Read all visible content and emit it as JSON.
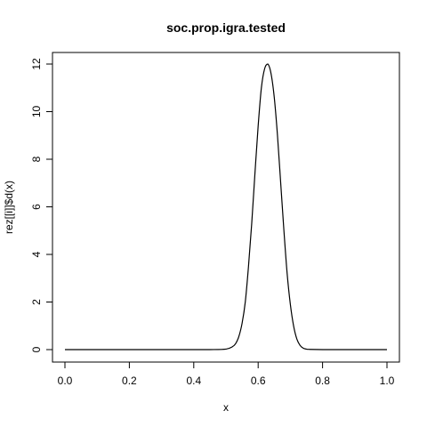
{
  "chart_data": {
    "type": "line",
    "title": "soc.prop.igra.tested",
    "xlabel": "x",
    "ylabel": "rez[[i]]$d(x)",
    "xlim": [
      0,
      1
    ],
    "ylim": [
      0,
      12
    ],
    "x_ticks": [
      0,
      0.2,
      0.4,
      0.6,
      0.8,
      1
    ],
    "x_tick_labels": [
      "0.0",
      "0.2",
      "0.4",
      "0.6",
      "0.8",
      "1.0"
    ],
    "y_ticks": [
      0,
      2,
      4,
      6,
      8,
      10,
      12
    ],
    "y_tick_labels": [
      "0",
      "2",
      "4",
      "6",
      "8",
      "10",
      "12"
    ],
    "grid": false,
    "legend": "none",
    "line_color": "#000000",
    "series": [
      {
        "x": [
          0,
          0.05,
          0.1,
          0.15,
          0.2,
          0.25,
          0.3,
          0.35,
          0.4,
          0.45,
          0.5,
          0.52,
          0.53,
          0.54,
          0.55,
          0.56,
          0.57,
          0.58,
          0.59,
          0.6,
          0.61,
          0.62,
          0.63,
          0.64,
          0.65,
          0.66,
          0.67,
          0.68,
          0.69,
          0.7,
          0.71,
          0.72,
          0.73,
          0.74,
          0.75,
          0.76,
          0.8,
          0.85,
          0.9,
          0.95,
          1
        ],
        "y": [
          0,
          0,
          0,
          0,
          0,
          0,
          0,
          0,
          0,
          0,
          0.02,
          0.12,
          0.25,
          0.55,
          1.1,
          2.0,
          3.5,
          5.3,
          7.4,
          9.4,
          11.0,
          11.8,
          12.0,
          11.6,
          10.6,
          9.0,
          7.0,
          5.0,
          3.2,
          1.9,
          1.0,
          0.45,
          0.18,
          0.06,
          0.02,
          0.01,
          0,
          0,
          0,
          0,
          0
        ]
      }
    ]
  }
}
